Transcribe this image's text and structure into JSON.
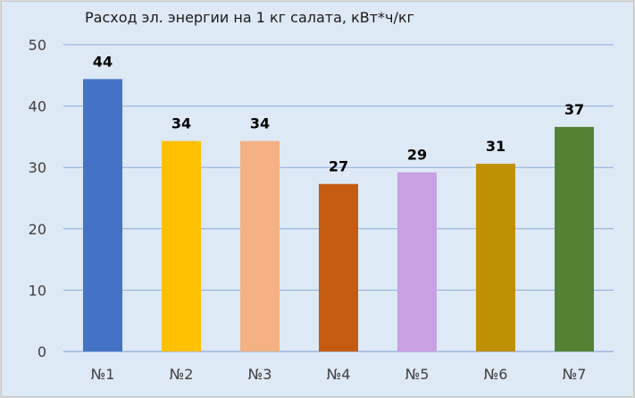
{
  "chart_data": {
    "type": "bar",
    "title": "Расход эл. энергии на 1 кг салата, кВт*ч/кг",
    "categories": [
      "№1",
      "№2",
      "№3",
      "№4",
      "№5",
      "№6",
      "№7"
    ],
    "values": [
      44.4,
      34.3,
      34.3,
      27.3,
      29.2,
      30.6,
      36.6
    ],
    "data_labels": [
      "44",
      "34",
      "34",
      "27",
      "29",
      "31",
      "37"
    ],
    "colors": [
      "#4472c4",
      "#ffc000",
      "#f4b183",
      "#c55a11",
      "#c9a0e2",
      "#bf9000",
      "#548235"
    ],
    "ylim": [
      0,
      50
    ],
    "yticks": [
      "0",
      "10",
      "20",
      "30",
      "40",
      "50"
    ],
    "grid": true,
    "legend": "none",
    "xlabel": "",
    "ylabel": ""
  }
}
